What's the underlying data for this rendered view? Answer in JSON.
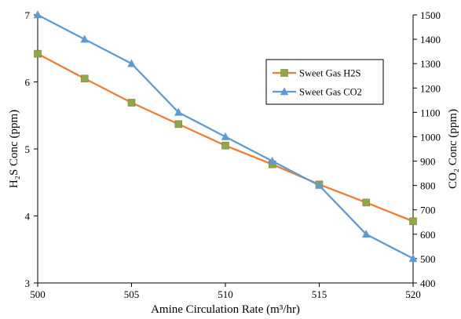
{
  "chart_data": {
    "type": "line",
    "xlabel": "Amine Circulation Rate (m³/hr)",
    "ylabel_left": "H₂S Conc (ppm)",
    "ylabel_right": "CO₂ Conc (ppm)",
    "xlim": [
      500,
      520
    ],
    "ylim_left": [
      3,
      7
    ],
    "ylim_right": [
      400,
      1500
    ],
    "x_ticks": [
      "500",
      "505",
      "510",
      "515",
      "520"
    ],
    "y_ticks_left": [
      "3",
      "4",
      "5",
      "6",
      "7"
    ],
    "y_ticks_right": [
      "400",
      "500",
      "600",
      "700",
      "800",
      "900",
      "1000",
      "1100",
      "1200",
      "1300",
      "1400",
      "1500"
    ],
    "grid": false,
    "legend_position": "right",
    "series": [
      {
        "name": "Sweet Gas H2S",
        "axis": "left",
        "color": "#ED7D31",
        "marker": "square",
        "marker_color": "#8FA84A",
        "x": [
          500,
          502.5,
          505,
          507.5,
          510,
          512.5,
          515,
          517.5,
          520
        ],
        "y": [
          6.42,
          6.05,
          5.69,
          5.37,
          5.05,
          4.77,
          4.47,
          4.2,
          3.92
        ]
      },
      {
        "name": "Sweet Gas CO2",
        "axis": "right",
        "color": "#5B9BD5",
        "marker": "triangle",
        "marker_color": "#5B9BD5",
        "x": [
          500,
          502.5,
          505,
          507.5,
          510,
          512.5,
          515,
          517.5,
          520
        ],
        "y": [
          1500,
          1400,
          1300,
          1100,
          1000,
          900,
          800,
          600,
          500
        ]
      }
    ]
  }
}
